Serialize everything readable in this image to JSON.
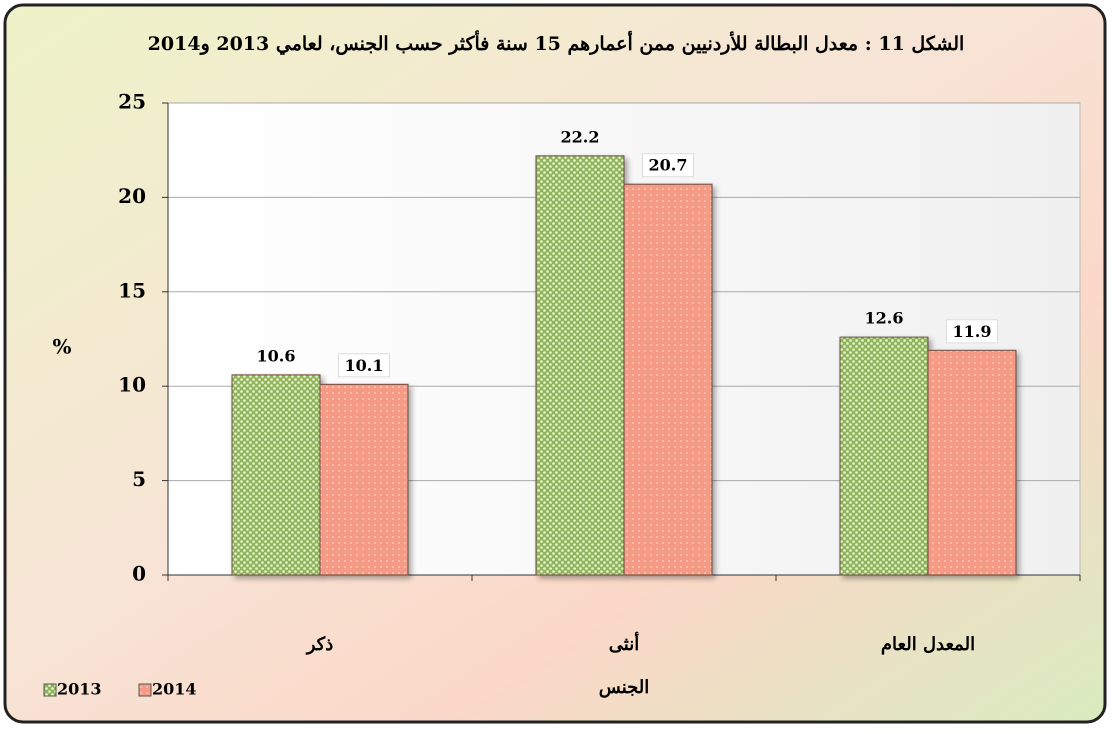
{
  "chart_data": {
    "type": "bar",
    "title": "الشكل 11 : معدل البطالة للأردنيين ممن أعمارهم 15 سنة فأكثر حسب الجنس، لعامي 2013 و2014",
    "categories": [
      "ذكر",
      "أنثى",
      "المعدل العام"
    ],
    "series": [
      {
        "name": "2013",
        "color": "#8fb55c",
        "values": [
          10.6,
          22.2,
          12.6
        ]
      },
      {
        "name": "2014",
        "color": "#f59a84",
        "values": [
          10.1,
          20.7,
          11.9
        ]
      }
    ],
    "x_label": "الجنس",
    "y_label": "%",
    "ylim": [
      0,
      25
    ],
    "yticks": [
      0,
      5,
      10,
      15,
      20,
      25
    ],
    "grid": true,
    "legend": "bottom-left"
  }
}
